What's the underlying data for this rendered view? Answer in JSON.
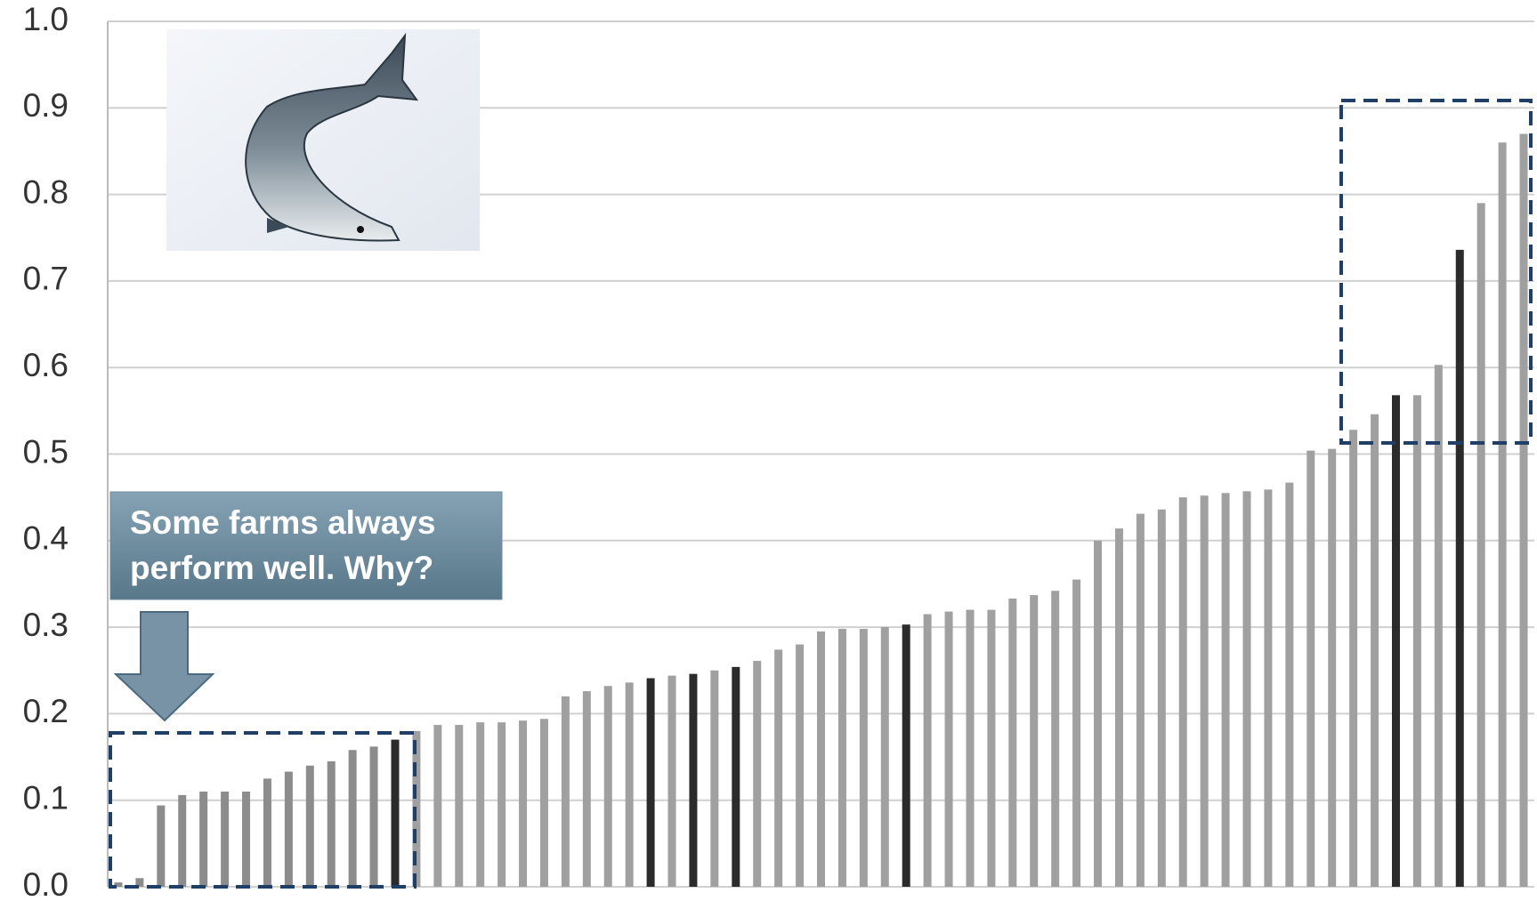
{
  "chart_data": {
    "type": "bar",
    "values": [
      0.005,
      0.01,
      0.094,
      0.106,
      0.11,
      0.11,
      0.11,
      0.125,
      0.133,
      0.14,
      0.145,
      0.158,
      0.162,
      0.17,
      0.18,
      0.187,
      0.187,
      0.19,
      0.19,
      0.192,
      0.194,
      0.22,
      0.226,
      0.232,
      0.236,
      0.241,
      0.244,
      0.246,
      0.25,
      0.254,
      0.261,
      0.274,
      0.28,
      0.295,
      0.298,
      0.298,
      0.3,
      0.303,
      0.315,
      0.318,
      0.32,
      0.32,
      0.333,
      0.337,
      0.342,
      0.355,
      0.4,
      0.414,
      0.431,
      0.436,
      0.45,
      0.452,
      0.455,
      0.457,
      0.459,
      0.467,
      0.504,
      0.506,
      0.528,
      0.546,
      0.568,
      0.568,
      0.603,
      0.736,
      0.79,
      0.86,
      0.87
    ],
    "colors": [
      "#8c8c8c",
      "#8c8c8c",
      "#8c8c8c",
      "#8c8c8c",
      "#8c8c8c",
      "#8c8c8c",
      "#8c8c8c",
      "#8c8c8c",
      "#8c8c8c",
      "#8c8c8c",
      "#8c8c8c",
      "#8c8c8c",
      "#8c8c8c",
      "#2b2b2b",
      "#a0a0a0",
      "#a0a0a0",
      "#a0a0a0",
      "#a0a0a0",
      "#a0a0a0",
      "#a0a0a0",
      "#a0a0a0",
      "#a0a0a0",
      "#a0a0a0",
      "#a0a0a0",
      "#a0a0a0",
      "#2b2b2b",
      "#a0a0a0",
      "#2b2b2b",
      "#a0a0a0",
      "#2b2b2b",
      "#a0a0a0",
      "#a0a0a0",
      "#a0a0a0",
      "#a0a0a0",
      "#a0a0a0",
      "#a0a0a0",
      "#a0a0a0",
      "#2b2b2b",
      "#a0a0a0",
      "#a0a0a0",
      "#a0a0a0",
      "#a0a0a0",
      "#a0a0a0",
      "#a0a0a0",
      "#a0a0a0",
      "#a0a0a0",
      "#a0a0a0",
      "#a0a0a0",
      "#a0a0a0",
      "#a0a0a0",
      "#a0a0a0",
      "#a0a0a0",
      "#a0a0a0",
      "#a0a0a0",
      "#a0a0a0",
      "#a0a0a0",
      "#a0a0a0",
      "#a0a0a0",
      "#a0a0a0",
      "#a0a0a0",
      "#2b2b2b",
      "#a0a0a0",
      "#a0a0a0",
      "#2b2b2b",
      "#a0a0a0",
      "#a0a0a0",
      "#a0a0a0"
    ],
    "ylim": [
      0,
      1
    ],
    "yticks": [
      {
        "value": 0,
        "label": "0.0"
      },
      0.1,
      0.2,
      0.3,
      0.4,
      0.5,
      0.6,
      0.7,
      0.8,
      0.9,
      {
        "value": 1,
        "label": "1.0"
      }
    ],
    "grid": true,
    "annotation": [
      "Some farms always",
      "perform well. Why?"
    ]
  }
}
